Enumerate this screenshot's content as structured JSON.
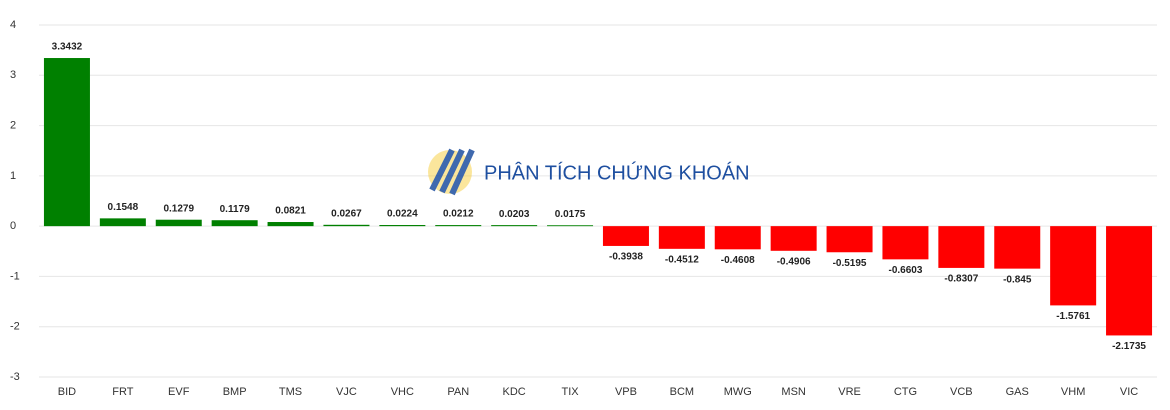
{
  "chart_data": {
    "type": "bar",
    "watermark": "PHÂN TÍCH CHỨNG KHOÁN",
    "categories": [
      "BID",
      "FRT",
      "EVF",
      "BMP",
      "TMS",
      "VJC",
      "VHC",
      "PAN",
      "KDC",
      "TIX",
      "VPB",
      "BCM",
      "MWG",
      "MSN",
      "VRE",
      "CTG",
      "VCB",
      "GAS",
      "VHM",
      "VIC"
    ],
    "values": [
      3.3432,
      0.1548,
      0.1279,
      0.1179,
      0.0821,
      0.0267,
      0.0224,
      0.0212,
      0.0203,
      0.0175,
      -0.3938,
      -0.4512,
      -0.4608,
      -0.4906,
      -0.5195,
      -0.6603,
      -0.8307,
      -0.845,
      -1.5761,
      -2.1735
    ],
    "positive_color": "#008000",
    "negative_color": "#ff0000",
    "ylim": [
      -3,
      4
    ],
    "yticks": [
      -3,
      -2,
      -1,
      0,
      1,
      2,
      3,
      4
    ],
    "grid": true
  }
}
